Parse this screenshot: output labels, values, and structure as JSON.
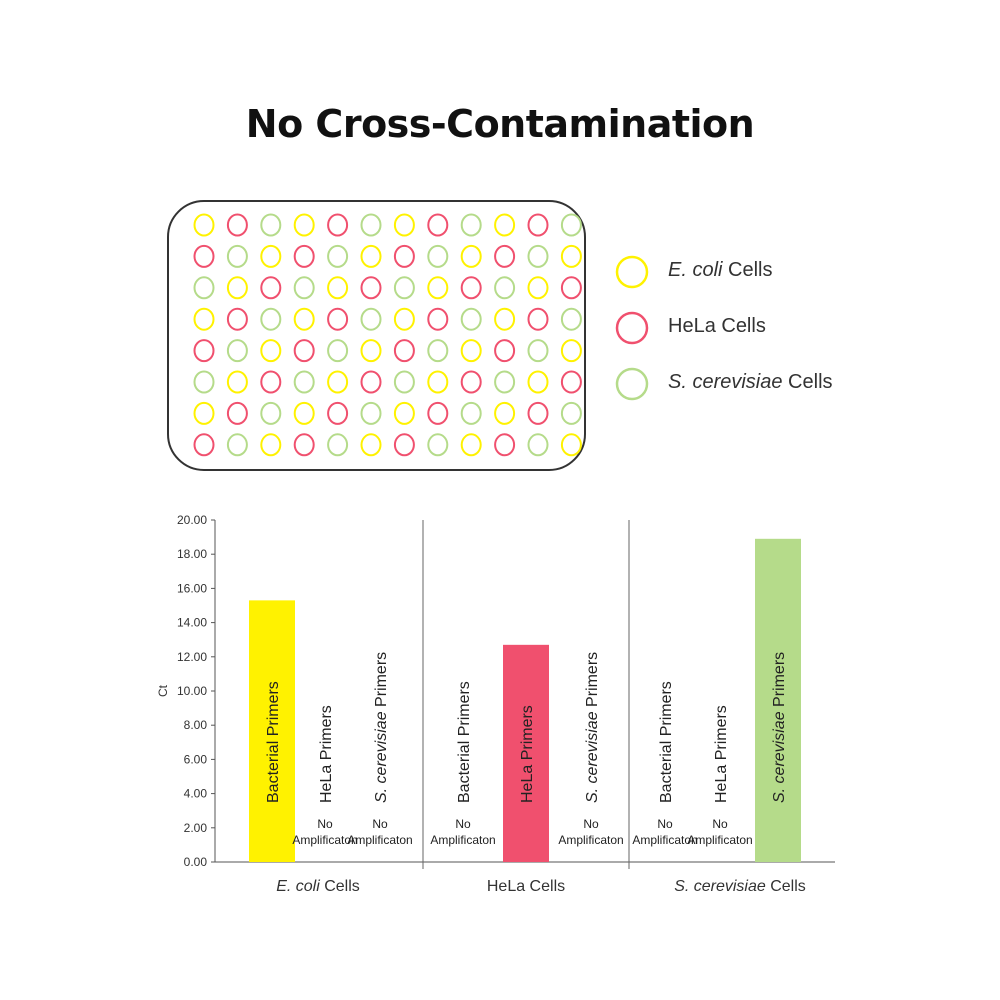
{
  "title": "No Cross-Contamination",
  "plate": {
    "rows": 8,
    "cols": 12,
    "pattern_note_colors": [
      "#fff200",
      "#f0506e",
      "#b5db8a"
    ]
  },
  "legend": [
    {
      "italic": "E. coli",
      "rest": " Cells",
      "color": "#fff200"
    },
    {
      "italic": "",
      "rest": "HeLa Cells",
      "color": "#f0506e"
    },
    {
      "italic": "S. cerevisiae",
      "rest": " Cells",
      "color": "#b5db8a"
    }
  ],
  "chart_data": {
    "type": "bar",
    "ylabel": "Ct",
    "ylim": [
      0,
      20
    ],
    "yticks": [
      "0.00",
      "2.00",
      "4.00",
      "6.00",
      "8.00",
      "10.00",
      "12.00",
      "14.00",
      "16.00",
      "18.00",
      "20.00"
    ],
    "no_amp_label": [
      "No",
      "Amplificaton"
    ],
    "groups": [
      {
        "italic": "E. coli",
        "rest": " Cells",
        "bars": [
          {
            "label_italic": "",
            "label": "Bacterial Primers",
            "value": 15.3,
            "color": "#fff200"
          },
          {
            "label_italic": "",
            "label": "HeLa Primers",
            "value": null
          },
          {
            "label_italic": "S. cerevisiae",
            "label": " Primers",
            "value": null
          }
        ]
      },
      {
        "italic": "",
        "rest": "HeLa Cells",
        "bars": [
          {
            "label_italic": "",
            "label": "Bacterial Primers",
            "value": null
          },
          {
            "label_italic": "",
            "label": "HeLa Primers",
            "value": 12.7,
            "color": "#f0506e"
          },
          {
            "label_italic": "S. cerevisiae",
            "label": " Primers",
            "value": null
          }
        ]
      },
      {
        "italic": "S. cerevisiae",
        "rest": " Cells",
        "bars": [
          {
            "label_italic": "",
            "label": "Bacterial  Primers",
            "value": null
          },
          {
            "label_italic": "",
            "label": "HeLa Primers",
            "value": null
          },
          {
            "label_italic": "S. cerevisiae",
            "label": " Primers",
            "value": 18.9,
            "color": "#b5db8a"
          }
        ]
      }
    ]
  }
}
